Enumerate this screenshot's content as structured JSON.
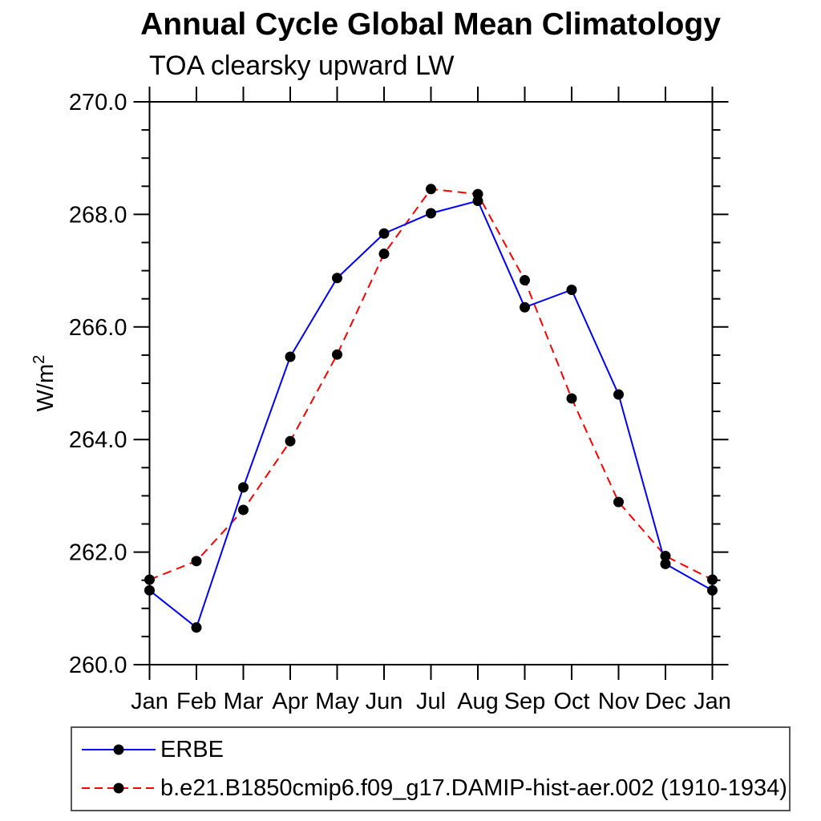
{
  "title": "Annual Cycle Global Mean Climatology",
  "subtitle": "TOA clearsky upward LW",
  "y_axis": {
    "label_base": "W/m",
    "label_exponent": "2"
  },
  "colors": {
    "erbe_line": "#0000ff",
    "model_line": "#ff0000",
    "marker": "#000000",
    "axis": "#000000"
  },
  "legend": {
    "position": "bottom-left",
    "items": [
      {
        "label": "ERBE",
        "color": "#0000ff",
        "line_style": "solid",
        "marker": "black-dot"
      },
      {
        "label": "b.e21.B1850cmip6.f09_g17.DAMIP-hist-aer.002 (1910-1934)",
        "color": "#ff0000",
        "line_style": "dashed",
        "marker": "black-dot"
      }
    ]
  },
  "chart_data": {
    "type": "line",
    "title": "Annual Cycle Global Mean Climatology",
    "subtitle": "TOA clearsky upward LW",
    "ylabel": "W/m²",
    "xlabel": "",
    "categories": [
      "Jan",
      "Feb",
      "Mar",
      "Apr",
      "May",
      "Jun",
      "Jul",
      "Aug",
      "Sep",
      "Oct",
      "Nov",
      "Dec",
      "Jan"
    ],
    "series": [
      {
        "name": "ERBE",
        "color": "#0000ff",
        "style": "solid",
        "marker": "circle",
        "marker_color": "#000000",
        "values": [
          261.32,
          260.66,
          263.15,
          265.47,
          266.87,
          267.66,
          268.02,
          268.24,
          266.35,
          266.66,
          264.8,
          261.79,
          261.32
        ]
      },
      {
        "name": "b.e21.B1850cmip6.f09_g17.DAMIP-hist-aer.002 (1910-1934)",
        "color": "#ff0000",
        "style": "dashed",
        "marker": "circle",
        "marker_color": "#000000",
        "values": [
          261.51,
          261.84,
          262.75,
          263.97,
          265.51,
          267.3,
          268.45,
          268.36,
          266.83,
          264.73,
          262.89,
          261.93,
          261.51
        ]
      }
    ],
    "ylim": [
      260.0,
      270.0
    ],
    "ytick_major_interval": 2.0,
    "ytick_minor_interval": 0.5,
    "ytick_major_labels": [
      "260.0",
      "262.0",
      "264.0",
      "266.0",
      "268.0",
      "270.0"
    ],
    "grid": false,
    "legend_position": "bottom-left"
  }
}
